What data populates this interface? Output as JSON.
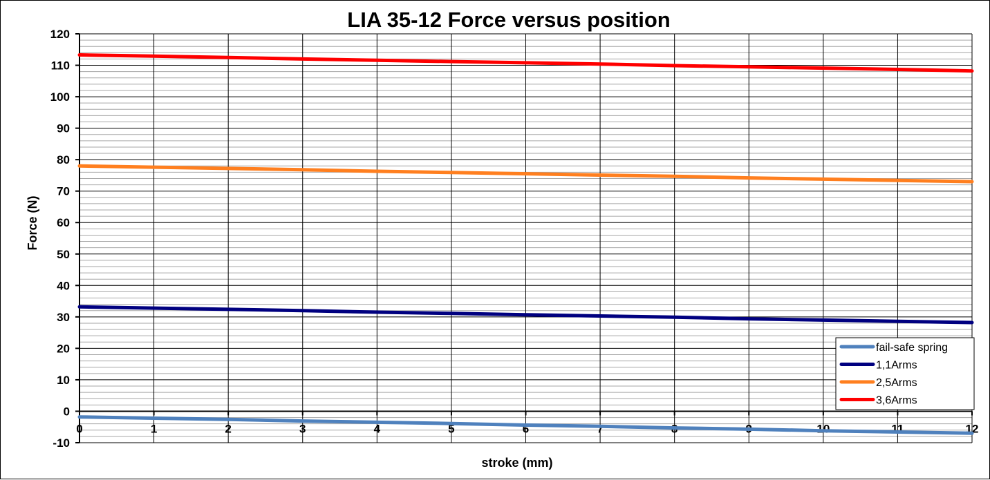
{
  "chart_data": {
    "type": "line",
    "title": "LIA 35-12 Force versus position",
    "xlabel": "stroke (mm)",
    "ylabel": "Force (N)",
    "xlim": [
      0,
      12
    ],
    "ylim": [
      -10,
      120
    ],
    "x_ticks": [
      "0",
      "1",
      "2",
      "3",
      "4",
      "5",
      "6",
      "7",
      "8",
      "9",
      "10",
      "11",
      "12"
    ],
    "y_ticks": [
      "-10",
      "0",
      "10",
      "20",
      "30",
      "40",
      "50",
      "60",
      "70",
      "80",
      "90",
      "100",
      "110",
      "120"
    ],
    "grid": {
      "major_x": true,
      "major_y": true,
      "minor_y_step": 2
    },
    "legend_position": "bottom-right",
    "x": [
      0,
      1,
      2,
      3,
      4,
      5,
      6,
      7,
      8,
      9,
      10,
      11,
      12
    ],
    "series": [
      {
        "name": "fail-safe spring",
        "color": "#4f81bd",
        "values": [
          -1.8,
          -2.2,
          -2.6,
          -3.1,
          -3.5,
          -3.9,
          -4.4,
          -4.8,
          -5.3,
          -5.7,
          -6.2,
          -6.6,
          -7.0
        ]
      },
      {
        "name": "1,1Arms",
        "color": "#000080",
        "values": [
          33.2,
          32.8,
          32.4,
          32.0,
          31.5,
          31.1,
          30.7,
          30.3,
          29.9,
          29.4,
          29.0,
          28.6,
          28.2
        ]
      },
      {
        "name": "2,5Arms",
        "color": "#ff7f1f",
        "values": [
          78.0,
          77.6,
          77.2,
          76.8,
          76.3,
          75.9,
          75.5,
          75.1,
          74.7,
          74.2,
          73.8,
          73.4,
          73.0
        ]
      },
      {
        "name": "3,6Arms",
        "color": "#ff0000",
        "values": [
          113.3,
          112.9,
          112.5,
          112.0,
          111.6,
          111.2,
          110.8,
          110.4,
          109.9,
          109.5,
          109.1,
          108.7,
          108.2
        ]
      }
    ]
  }
}
